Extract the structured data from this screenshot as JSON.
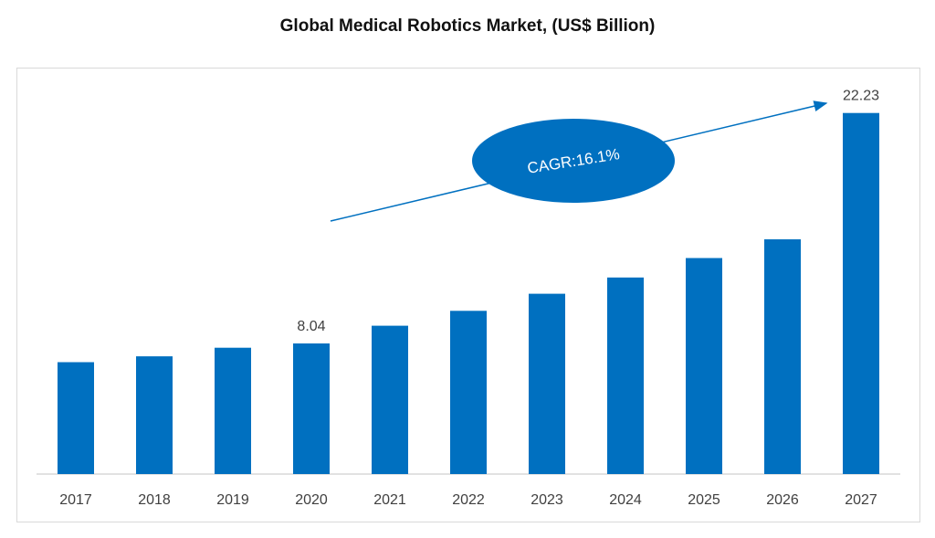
{
  "chart_data": {
    "type": "bar",
    "title": "Global Medical Robotics Market, (US$ Billion)",
    "categories": [
      "2017",
      "2018",
      "2019",
      "2020",
      "2021",
      "2022",
      "2023",
      "2024",
      "2025",
      "2026",
      "2027"
    ],
    "values": [
      6.89,
      7.25,
      7.78,
      8.04,
      9.13,
      10.05,
      11.1,
      12.1,
      13.3,
      14.45,
      22.23
    ],
    "data_labels": [
      null,
      null,
      null,
      "8.04",
      null,
      null,
      null,
      null,
      null,
      null,
      "22.23"
    ],
    "ylim": [
      0,
      23
    ],
    "grid": false,
    "legend": "none",
    "annotation": {
      "text": "CAGR:16.1%"
    },
    "colors": {
      "bar": "#0070c0",
      "axis": "#d9d9d9",
      "text": "#404040",
      "annotation_text": "#ffffff"
    }
  }
}
